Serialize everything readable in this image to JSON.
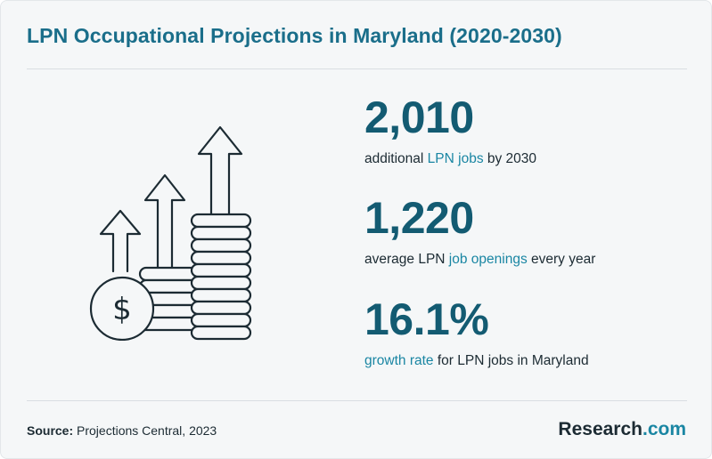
{
  "header": {
    "title": "LPN Occupational Projections in Maryland (2020-2030)"
  },
  "illustration": {
    "icon": "money-growth-icon",
    "symbol": "$"
  },
  "stats": [
    {
      "value": "2,010",
      "text_before": "additional ",
      "highlight": "LPN jobs",
      "text_after": " by 2030"
    },
    {
      "value": "1,220",
      "text_before": "average LPN ",
      "highlight": "job openings",
      "text_after": " every year"
    },
    {
      "value": "16.1%",
      "text_before": "",
      "highlight": "growth rate",
      "text_after": " for LPN jobs in Maryland"
    }
  ],
  "footer": {
    "source_label": "Source:",
    "source_text": " Projections Central, 2023",
    "brand_name": "Research",
    "brand_suffix": ".com"
  },
  "colors": {
    "title": "#1a6e8a",
    "stat_value": "#135b72",
    "highlight": "#1a86a3",
    "icon_stroke": "#1c2b33"
  }
}
